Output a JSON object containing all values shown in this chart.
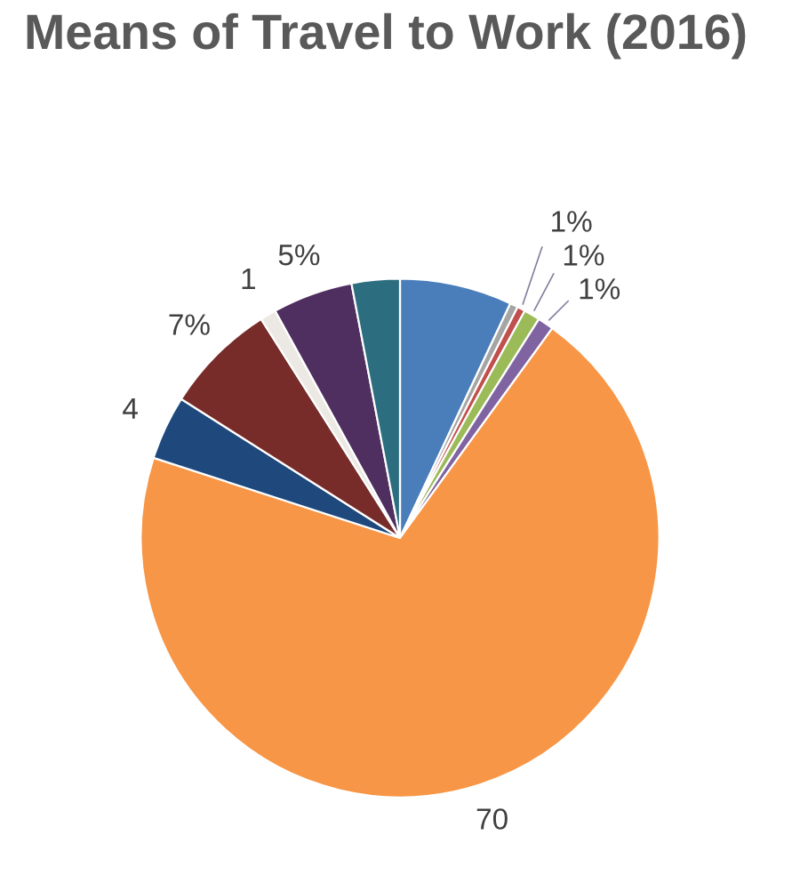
{
  "chart_data": {
    "type": "pie",
    "title": "Means of Travel to Work (2016)",
    "categories": [
      null,
      null,
      null,
      null,
      null,
      null,
      null,
      null,
      null,
      null,
      null
    ],
    "values": [
      7,
      0.5,
      0.5,
      1,
      1,
      70,
      4,
      7,
      1,
      5,
      3
    ],
    "value_labels": [
      null,
      null,
      "1%",
      "1%",
      "1%",
      "70",
      "4",
      "7%",
      "1",
      "5%",
      null
    ],
    "colors": [
      "#4a7ebb",
      "#a5a5a5",
      "#c0504d",
      "#9bbb59",
      "#8064a2",
      "#f79646",
      "#1f497d",
      "#772c2a",
      "#ece9e4",
      "#4f2f5f",
      "#2c6e7f"
    ],
    "legend": false
  }
}
